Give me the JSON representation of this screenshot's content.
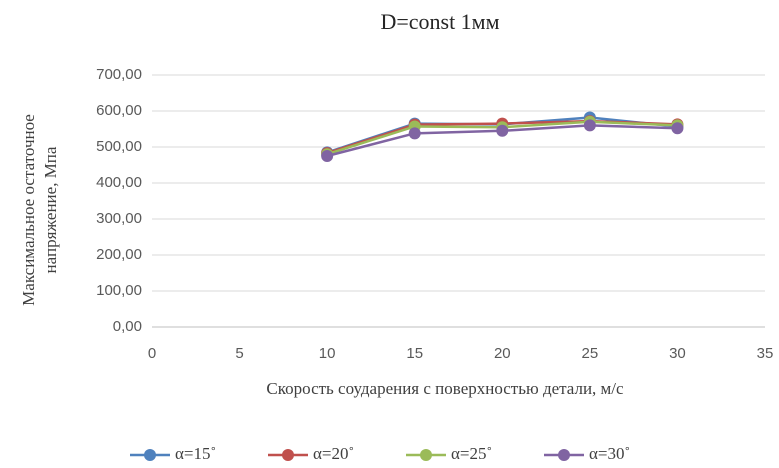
{
  "chart_data": {
    "type": "line",
    "title": "D=const 1мм",
    "xlabel": "Скорость соударения с поверхностью детали, м/с",
    "ylabel": [
      "Максимальное остаточное",
      "напряжение, Мпа"
    ],
    "x": [
      10,
      15,
      20,
      25,
      30
    ],
    "series": [
      {
        "name": "α=15˚",
        "color": "#4f81bd",
        "values": [
          485,
          565,
          563,
          582,
          557
        ]
      },
      {
        "name": "α=20˚",
        "color": "#c0504d",
        "values": [
          483,
          562,
          565,
          572,
          563
        ]
      },
      {
        "name": "α=25˚",
        "color": "#9bbb59",
        "values": [
          480,
          557,
          555,
          570,
          560
        ]
      },
      {
        "name": "α=30˚",
        "color": "#8064a2",
        "values": [
          475,
          538,
          545,
          560,
          552
        ]
      }
    ],
    "xlim": [
      0,
      35
    ],
    "xticks": [
      0,
      5,
      10,
      15,
      20,
      25,
      30,
      35
    ],
    "ylim": [
      0,
      700
    ],
    "yticks": [
      {
        "value": 0,
        "label": "0,00"
      },
      {
        "value": 100,
        "label": "100,00"
      },
      {
        "value": 200,
        "label": "200,00"
      },
      {
        "value": 300,
        "label": "300,00"
      },
      {
        "value": 400,
        "label": "400,00"
      },
      {
        "value": 500,
        "label": "500,00"
      },
      {
        "value": 600,
        "label": "600,00"
      },
      {
        "value": 700,
        "label": "700,00"
      }
    ],
    "grid": true,
    "legend": "bottom"
  }
}
